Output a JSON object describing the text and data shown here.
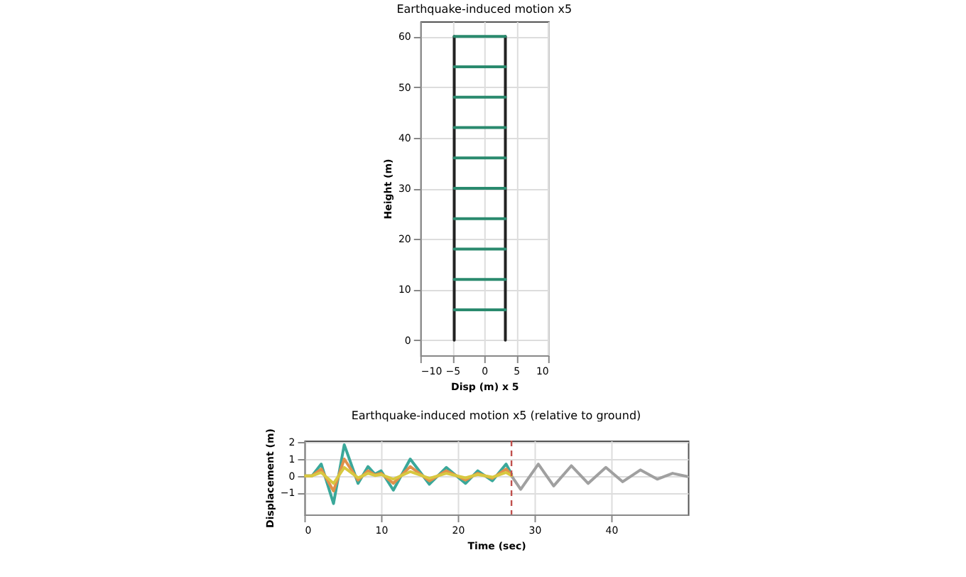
{
  "chart_data": [
    {
      "type": "line",
      "title": "Earthquake-induced motion x5",
      "xlabel": "Disp (m) x 5",
      "ylabel": "Height (m)",
      "xlim": [
        -10,
        10
      ],
      "xticks": [
        -10,
        -5,
        0,
        5,
        10
      ],
      "ylim": [
        -3,
        63
      ],
      "yticks": [
        0,
        10,
        20,
        30,
        40,
        50,
        60
      ],
      "grid": true,
      "series": [
        {
          "color": "#222222",
          "x": [
            -4.7,
            -4.7
          ],
          "values": [
            0,
            60
          ]
        },
        {
          "color": "#222222",
          "x": [
            3.3,
            3.3
          ],
          "values": [
            0,
            60
          ]
        },
        {
          "color": "#2a8a6e",
          "x": [
            -4.7,
            3.3
          ],
          "values": [
            6,
            6
          ]
        },
        {
          "color": "#2a8a6e",
          "x": [
            -4.7,
            3.3
          ],
          "values": [
            12,
            12
          ]
        },
        {
          "color": "#2a8a6e",
          "x": [
            -4.7,
            3.3
          ],
          "values": [
            18,
            18
          ]
        },
        {
          "color": "#2a8a6e",
          "x": [
            -4.7,
            3.3
          ],
          "values": [
            24,
            24
          ]
        },
        {
          "color": "#2a8a6e",
          "x": [
            -4.7,
            3.3
          ],
          "values": [
            30,
            30
          ]
        },
        {
          "color": "#2a8a6e",
          "x": [
            -4.7,
            3.3
          ],
          "values": [
            36,
            36
          ]
        },
        {
          "color": "#2a8a6e",
          "x": [
            -4.7,
            3.3
          ],
          "values": [
            42,
            42
          ]
        },
        {
          "color": "#2a8a6e",
          "x": [
            -4.7,
            3.3
          ],
          "values": [
            48,
            48
          ]
        },
        {
          "color": "#2a8a6e",
          "x": [
            -4.7,
            3.3
          ],
          "values": [
            54,
            54
          ]
        },
        {
          "color": "#2a8a6e",
          "x": [
            -4.7,
            3.3
          ],
          "values": [
            60,
            60
          ]
        }
      ]
    },
    {
      "type": "line",
      "title": "Earthquake-induced motion x5 (relative to ground)",
      "xlabel": "Time (sec)",
      "ylabel": "Displacement (m)",
      "xlim": [
        0,
        50
      ],
      "xticks": [
        0,
        10,
        20,
        30,
        40
      ],
      "ylim": [
        -2.3,
        2.1
      ],
      "yticks": [
        -1,
        0,
        1,
        2
      ],
      "grid": true,
      "ref_lines": [
        {
          "axis": "x",
          "value": 27,
          "color": "#c0504d",
          "line_style": "dashed"
        }
      ],
      "series": [
        {
          "color": "#a0a0a0",
          "x": [
            27,
            28.2,
            30.5,
            32.5,
            34.8,
            37,
            39.3,
            41.5,
            43.8,
            46,
            48,
            50
          ],
          "values": [
            0,
            -0.8,
            0.7,
            -0.6,
            0.6,
            -0.45,
            0.5,
            -0.35,
            0.35,
            -0.2,
            0.15,
            -0.05
          ]
        },
        {
          "color": "#3aa89a",
          "x": [
            0,
            1,
            2.2,
            3.8,
            5.2,
            7,
            8.3,
            9.2,
            10,
            11.6,
            13.8,
            16.3,
            18.5,
            21,
            22.6,
            24.5,
            26.3,
            27
          ],
          "values": [
            0,
            0,
            0.7,
            -1.65,
            1.85,
            -0.45,
            0.55,
            0.1,
            0.3,
            -0.85,
            1.0,
            -0.5,
            0.5,
            -0.45,
            0.3,
            -0.3,
            0.7,
            0.1
          ]
        },
        {
          "color": "#e0904a",
          "x": [
            0,
            1,
            2.2,
            3.8,
            5.2,
            7,
            8.3,
            9.2,
            10,
            11.6,
            13.8,
            16.3,
            18.5,
            21,
            22.6,
            24.5,
            26.3,
            27
          ],
          "values": [
            0,
            0,
            0.4,
            -0.9,
            1.0,
            -0.25,
            0.3,
            0.05,
            0.15,
            -0.45,
            0.55,
            -0.3,
            0.3,
            -0.25,
            0.15,
            -0.15,
            0.4,
            0.05
          ]
        },
        {
          "color": "#d8c840",
          "x": [
            0,
            1,
            2.2,
            3.8,
            5.2,
            7,
            8.3,
            9.2,
            10,
            11.6,
            13.8,
            16.3,
            18.5,
            21,
            22.6,
            24.5,
            26.3,
            27
          ],
          "values": [
            0,
            0,
            0.2,
            -0.45,
            0.5,
            -0.12,
            0.15,
            0.02,
            0.08,
            -0.2,
            0.25,
            -0.15,
            0.15,
            -0.12,
            0.08,
            -0.08,
            0.2,
            0.02
          ]
        }
      ]
    }
  ]
}
